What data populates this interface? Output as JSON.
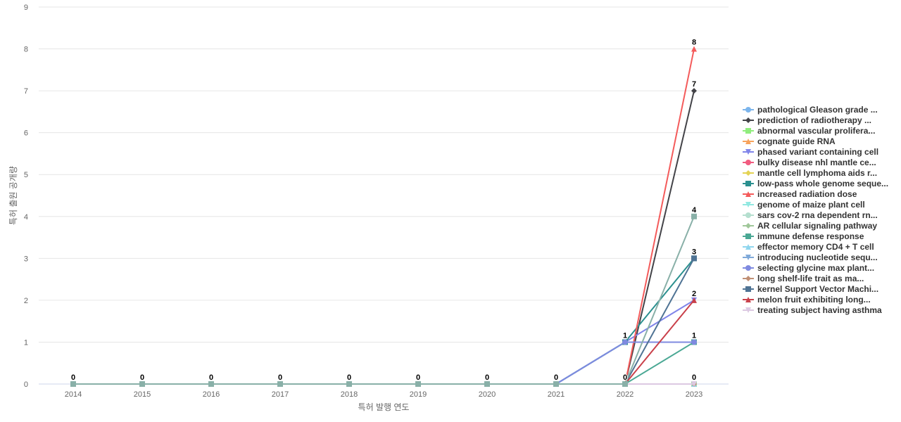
{
  "chart_data": {
    "type": "line",
    "xlabel": "특허 발행 연도",
    "ylabel": "특허 출원 공개량",
    "ylim": [
      0,
      9
    ],
    "yticks": [
      "0",
      "1",
      "2",
      "3",
      "4",
      "5",
      "6",
      "7",
      "8",
      "9"
    ],
    "categories": [
      "2014",
      "2015",
      "2016",
      "2017",
      "2018",
      "2019",
      "2020",
      "2021",
      "2022",
      "2023"
    ],
    "grid": true,
    "legend_position": "right",
    "series": [
      {
        "name": "pathological Gleason grade ...",
        "color": "#7cb5ec",
        "marker": "circle",
        "values": [
          0,
          0,
          0,
          0,
          0,
          0,
          0,
          0,
          1,
          1
        ]
      },
      {
        "name": "prediction of radiotherapy ...",
        "color": "#434348",
        "marker": "diamond",
        "values": [
          0,
          0,
          0,
          0,
          0,
          0,
          0,
          0,
          0,
          7
        ]
      },
      {
        "name": "abnormal vascular prolifera...",
        "color": "#90ed7d",
        "marker": "square",
        "values": [
          0,
          0,
          0,
          0,
          0,
          0,
          0,
          0,
          0,
          0
        ]
      },
      {
        "name": "cognate guide RNA",
        "color": "#f7a35c",
        "marker": "triangle",
        "values": [
          0,
          0,
          0,
          0,
          0,
          0,
          0,
          0,
          0,
          0
        ]
      },
      {
        "name": "phased variant containing cell",
        "color": "#8085e9",
        "marker": "triangle-down",
        "values": [
          0,
          0,
          0,
          0,
          0,
          0,
          0,
          0,
          1,
          2
        ]
      },
      {
        "name": "bulky disease nhl mantle ce...",
        "color": "#f15c80",
        "marker": "circle",
        "values": [
          0,
          0,
          0,
          0,
          0,
          0,
          0,
          0,
          0,
          0
        ]
      },
      {
        "name": "mantle cell lymphoma aids r...",
        "color": "#e4d354",
        "marker": "diamond",
        "values": [
          0,
          0,
          0,
          0,
          0,
          0,
          0,
          0,
          0,
          0
        ]
      },
      {
        "name": "low-pass whole genome seque...",
        "color": "#2b908f",
        "marker": "square",
        "values": [
          0,
          0,
          0,
          0,
          0,
          0,
          0,
          0,
          1,
          3
        ]
      },
      {
        "name": "increased radiation dose",
        "color": "#f45b5b",
        "marker": "triangle",
        "values": [
          0,
          0,
          0,
          0,
          0,
          0,
          0,
          0,
          0,
          8
        ]
      },
      {
        "name": "genome of maize plant cell",
        "color": "#91e8e1",
        "marker": "triangle-down",
        "values": [
          0,
          0,
          0,
          0,
          0,
          0,
          0,
          0,
          0,
          0
        ]
      },
      {
        "name": "sars cov-2 rna dependent rn...",
        "color": "#b5dfcf",
        "marker": "circle",
        "values": [
          0,
          0,
          0,
          0,
          0,
          0,
          0,
          0,
          0,
          0
        ]
      },
      {
        "name": "AR cellular signaling pathway",
        "color": "#a0c79a",
        "marker": "diamond",
        "values": [
          0,
          0,
          0,
          0,
          0,
          0,
          0,
          0,
          0,
          0
        ]
      },
      {
        "name": "immune defense response",
        "color": "#4aa894",
        "marker": "square",
        "values": [
          0,
          0,
          0,
          0,
          0,
          0,
          0,
          0,
          0,
          1
        ]
      },
      {
        "name": "effector memory CD4 + T cell",
        "color": "#8fd6ee",
        "marker": "triangle",
        "values": [
          0,
          0,
          0,
          0,
          0,
          0,
          0,
          0,
          0,
          0
        ]
      },
      {
        "name": "introducing nucleotide sequ...",
        "color": "#7fa9d9",
        "marker": "triangle-down",
        "values": [
          0,
          0,
          0,
          0,
          0,
          0,
          0,
          0,
          0,
          0
        ]
      },
      {
        "name": "selecting glycine max plant...",
        "color": "#7f8ae0",
        "marker": "circle",
        "values": [
          0,
          0,
          0,
          0,
          0,
          0,
          0,
          0,
          1,
          1
        ]
      },
      {
        "name": "long shelf-life trait as ma...",
        "color": "#c08f75",
        "marker": "diamond",
        "values": [
          0,
          0,
          0,
          0,
          0,
          0,
          0,
          0,
          0,
          0
        ]
      },
      {
        "name": "kernel Support Vector Machi...",
        "color": "#4f7394",
        "marker": "square",
        "values": [
          0,
          0,
          0,
          0,
          0,
          0,
          0,
          0,
          0,
          3
        ]
      },
      {
        "name": "melon fruit exhibiting long...",
        "color": "#c9404a",
        "marker": "triangle",
        "values": [
          0,
          0,
          0,
          0,
          0,
          0,
          0,
          0,
          0,
          2
        ]
      },
      {
        "name": "treating subject having asthma",
        "color": "#dcc9e2",
        "marker": "triangle-down",
        "values": [
          0,
          0,
          0,
          0,
          0,
          0,
          0,
          0,
          0,
          0
        ]
      },
      {
        "name": "",
        "color": "#89b0a8",
        "marker": "square",
        "values": [
          0,
          0,
          0,
          0,
          0,
          0,
          0,
          0,
          0,
          4
        ]
      }
    ]
  }
}
